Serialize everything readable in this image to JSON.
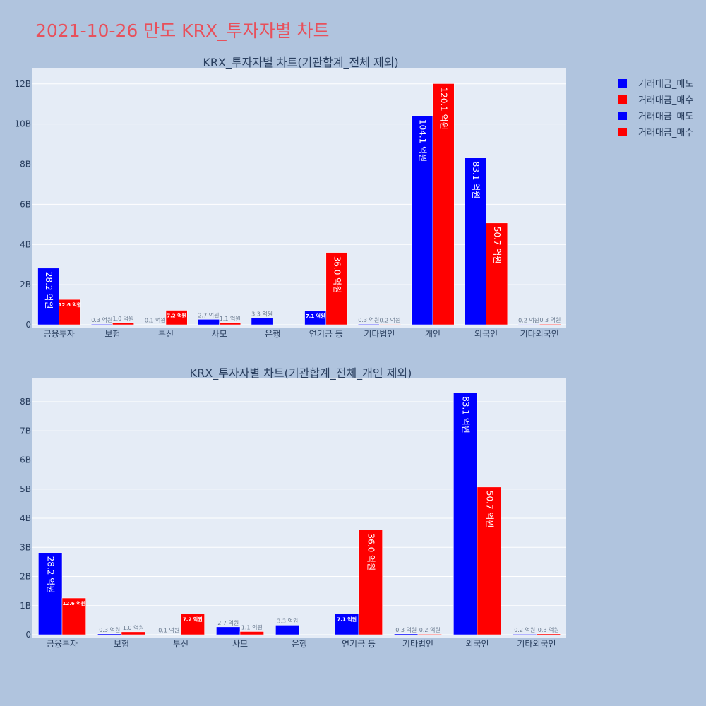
{
  "page_title": "2021-10-26 만도 KRX_투자자별 차트",
  "colors": {
    "background": "#b0c4de",
    "plot_bg": "#e5ecf6",
    "sell": "#0000ff",
    "buy": "#ff0000",
    "title": "#e8505b",
    "text": "#2a3f5f",
    "grid": "#ffffff"
  },
  "legend": [
    {
      "label": "거래대금_매도",
      "color": "#0000ff"
    },
    {
      "label": "거래대금_매수",
      "color": "#ff0000"
    },
    {
      "label": "거래대금_매도",
      "color": "#0000ff"
    },
    {
      "label": "거래대금_매수",
      "color": "#ff0000"
    }
  ],
  "chart_data": [
    {
      "type": "bar",
      "title": "KRX_투자자별 차트(기관합계_전체 제외)",
      "categories": [
        "금융투자",
        "보험",
        "투신",
        "사모",
        "은행",
        "연기금 등",
        "기타법인",
        "개인",
        "외국인",
        "기타외국인"
      ],
      "series": [
        {
          "name": "거래대금_매도",
          "color": "#0000ff",
          "values": [
            2820000000,
            30000000,
            10000000,
            270000000,
            330000000,
            710000000,
            30000000,
            10410000000,
            8310000000,
            20000000
          ],
          "labels": [
            "28.2 억원",
            "0.3 억원",
            "0.1 억원",
            "2.7 억원",
            "3.3 억원",
            "7.1 억원",
            "0.3 억원",
            "104.1 억원",
            "83.1 억원",
            "0.2 억원"
          ]
        },
        {
          "name": "거래대금_매수",
          "color": "#ff0000",
          "values": [
            1260000000,
            100000000,
            720000000,
            110000000,
            0,
            3600000000,
            20000000,
            12010000000,
            5070000000,
            30000000
          ],
          "labels": [
            "12.6 억원",
            "1.0 억원",
            "7.2 억원",
            "1.1 억원",
            "",
            "36.0 억원",
            "0.2 억원",
            "120.1 억원",
            "50.7 억원",
            "0.3 억원"
          ]
        }
      ],
      "yticks": [
        0,
        2000000000,
        4000000000,
        6000000000,
        8000000000,
        10000000000,
        12000000000
      ],
      "yticklabels": [
        "0",
        "2B",
        "4B",
        "6B",
        "8B",
        "10B",
        "12B"
      ],
      "ylim": [
        0,
        12800000000
      ],
      "grid": true
    },
    {
      "type": "bar",
      "title": "KRX_투자자별 차트(기관합계_전체_개인 제외)",
      "categories": [
        "금융투자",
        "보험",
        "투신",
        "사모",
        "은행",
        "연기금 등",
        "기타법인",
        "외국인",
        "기타외국인"
      ],
      "series": [
        {
          "name": "거래대금_매도",
          "color": "#0000ff",
          "values": [
            2820000000,
            30000000,
            10000000,
            270000000,
            330000000,
            710000000,
            30000000,
            8310000000,
            20000000
          ],
          "labels": [
            "28.2 억원",
            "0.3 억원",
            "0.1 억원",
            "2.7 억원",
            "3.3 억원",
            "7.1 억원",
            "0.3 억원",
            "83.1 억원",
            "0.2 억원"
          ]
        },
        {
          "name": "거래대금_매수",
          "color": "#ff0000",
          "values": [
            1260000000,
            100000000,
            720000000,
            110000000,
            0,
            3600000000,
            20000000,
            5070000000,
            30000000
          ],
          "labels": [
            "12.6 억원",
            "1.0 억원",
            "7.2 억원",
            "1.1 억원",
            "",
            "36.0 억원",
            "0.2 억원",
            "50.7 억원",
            "0.3 억원"
          ]
        }
      ],
      "yticks": [
        0,
        1000000000,
        2000000000,
        3000000000,
        4000000000,
        5000000000,
        6000000000,
        7000000000,
        8000000000
      ],
      "yticklabels": [
        "0",
        "1B",
        "2B",
        "3B",
        "4B",
        "5B",
        "6B",
        "7B",
        "8B"
      ],
      "ylim": [
        0,
        8800000000
      ],
      "grid": true
    }
  ]
}
